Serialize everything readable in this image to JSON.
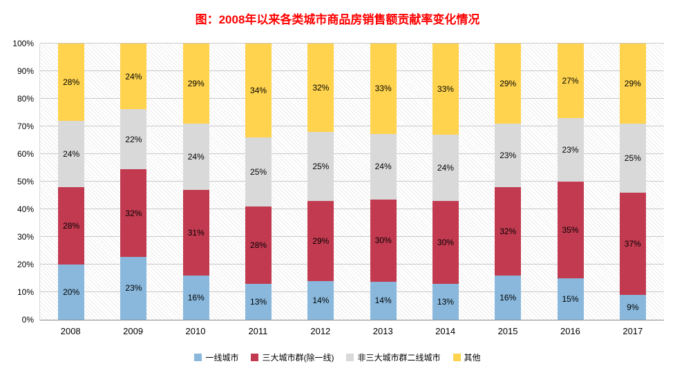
{
  "title": "图：2008年以来各类城市商品房销售额贡献率变化情况",
  "title_color": "#ff0000",
  "chart_data": {
    "type": "bar",
    "stacked": true,
    "percent_stacked": true,
    "title": "图：2008年以来各类城市商品房销售额贡献率变化情况",
    "xlabel": "",
    "ylabel": "",
    "ylim": [
      0,
      100
    ],
    "grid": true,
    "legend_position": "bottom",
    "background_hatch": "diagonal",
    "categories": [
      "2008",
      "2009",
      "2010",
      "2011",
      "2012",
      "2013",
      "2014",
      "2015",
      "2016",
      "2017"
    ],
    "yticks": [
      "0%",
      "10%",
      "20%",
      "30%",
      "40%",
      "50%",
      "60%",
      "70%",
      "80%",
      "90%",
      "100%"
    ],
    "series": [
      {
        "name": "一线城市",
        "color": "#89B8DC",
        "values": [
          20,
          23,
          16,
          13,
          14,
          14,
          13,
          16,
          15,
          9
        ]
      },
      {
        "name": "三大城市群(除一线)",
        "color": "#C23A50",
        "values": [
          28,
          32,
          31,
          28,
          29,
          30,
          30,
          32,
          35,
          37
        ]
      },
      {
        "name": "非三大城市群二线城市",
        "color": "#D9D9D9",
        "values": [
          24,
          22,
          24,
          25,
          25,
          24,
          24,
          23,
          23,
          25
        ]
      },
      {
        "name": "其他",
        "color": "#FFD34D",
        "values": [
          28,
          24,
          29,
          34,
          32,
          33,
          33,
          29,
          27,
          29
        ]
      }
    ]
  }
}
